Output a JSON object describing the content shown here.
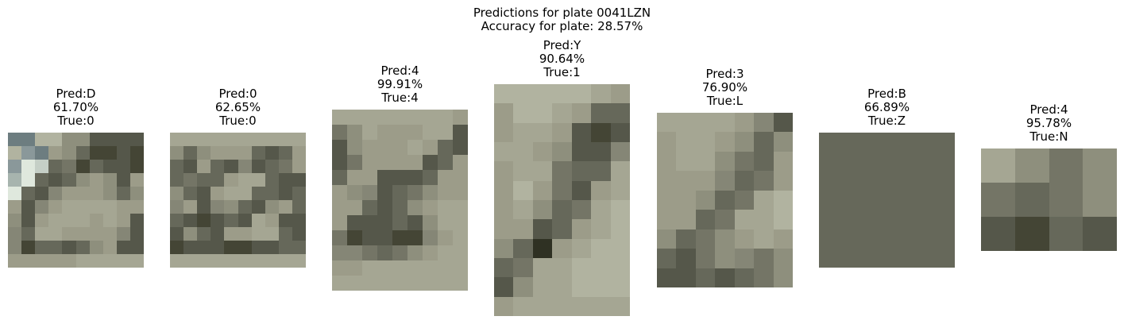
{
  "figure": {
    "title_line1": "Predictions for plate 0041LZN",
    "title_line2": "Accuracy for plate: 28.57%"
  },
  "chart_data": {
    "type": "image-grid",
    "plate": "0041LZN",
    "accuracy": "28.57%",
    "panels": [
      {
        "pred": "Pred:D",
        "conf": "61.70%",
        "true": "True:0",
        "grid": [
          10,
          10
        ],
        "dominant_color": "#9b9b88"
      },
      {
        "pred": "Pred:0",
        "conf": "62.65%",
        "true": "True:0",
        "grid": [
          10,
          10
        ],
        "dominant_color": "#9a9a88"
      },
      {
        "pred": "Pred:4",
        "conf": "99.91%",
        "true": "True:4",
        "grid": [
          9,
          12
        ],
        "dominant_color": "#9d9d8a"
      },
      {
        "pred": "Pred:Y",
        "conf": "90.64%",
        "true": "True:1",
        "grid": [
          7,
          12
        ],
        "dominant_color": "#a2a38f"
      },
      {
        "pred": "Pred:3",
        "conf": "76.90%",
        "true": "True:L",
        "grid": [
          7,
          9
        ],
        "dominant_color": "#8f8f7c"
      },
      {
        "pred": "Pred:B",
        "conf": "66.89%",
        "true": "True:Z",
        "grid": [
          1,
          1
        ],
        "dominant_color": "#5a5c56"
      },
      {
        "pred": "Pred:4",
        "conf": "95.78%",
        "true": "True:N",
        "grid": [
          4,
          3
        ],
        "dominant_color": "#6d6d5c"
      }
    ]
  }
}
